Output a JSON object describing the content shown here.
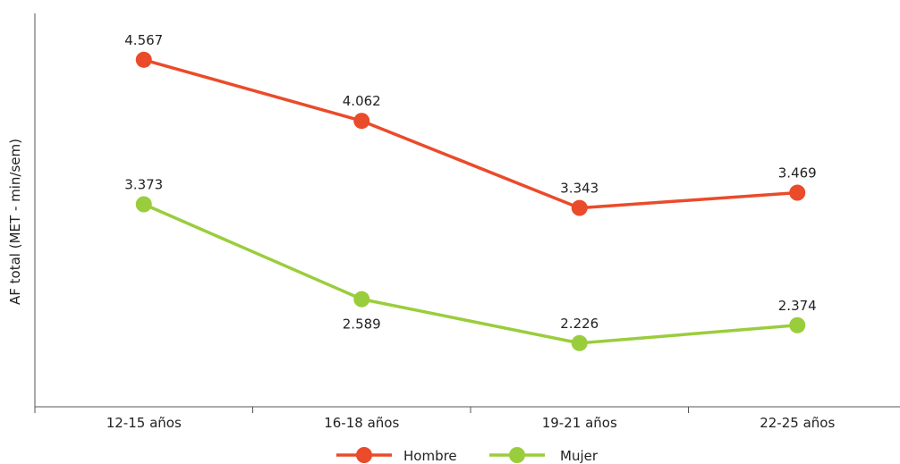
{
  "chart_data": {
    "type": "line",
    "title": "",
    "xlabel": "",
    "ylabel": "AF total (MET - min/sem)",
    "categories": [
      "12-15 años",
      "16-18 años",
      "19-21 años",
      "22-25 años"
    ],
    "series": [
      {
        "name": "Hombre",
        "color": "#ea4b2a",
        "values": [
          4567,
          4062,
          3343,
          3469
        ],
        "labels": [
          "4.567",
          "4.062",
          "3.343",
          "3.469"
        ],
        "label_position": [
          "above",
          "above",
          "above",
          "above"
        ]
      },
      {
        "name": "Mujer",
        "color": "#9acd3c",
        "values": [
          3373,
          2589,
          2226,
          2374
        ],
        "labels": [
          "3.373",
          "2.589",
          "2.226",
          "2.374"
        ],
        "label_position": [
          "above",
          "below",
          "above",
          "above"
        ]
      }
    ],
    "ylim": [
      1700,
      4950
    ],
    "grid": false,
    "y_ticks_shown": false,
    "legend_position": "bottom"
  }
}
